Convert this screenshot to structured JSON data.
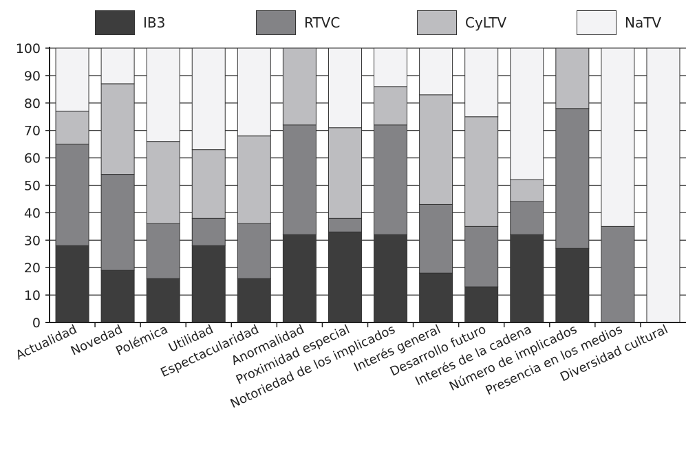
{
  "chart_data": {
    "type": "bar",
    "stacked": true,
    "categories": [
      "Actualidad",
      "Novedad",
      "Polémica",
      "Utilidad",
      "Espectacularidad",
      "Anormalidad",
      "Proximidad especial",
      "Notoriedad de los implicados",
      "Interés general",
      "Desarrollo futuro",
      "Interés de la cadena",
      "Número de implicados",
      "Presencia en los medios",
      "Diversidad cultural"
    ],
    "series": [
      {
        "name": "IB3",
        "color": "#3d3d3d",
        "values": [
          28,
          19,
          16,
          28,
          16,
          32,
          33,
          32,
          18,
          13,
          32,
          27,
          0,
          0
        ]
      },
      {
        "name": "RTVC",
        "color": "#838386",
        "values": [
          37,
          35,
          20,
          10,
          20,
          40,
          5,
          40,
          25,
          22,
          12,
          51,
          35,
          0
        ]
      },
      {
        "name": "CyLTV",
        "color": "#bdbdc0",
        "values": [
          12,
          33,
          30,
          25,
          32,
          28,
          33,
          14,
          40,
          40,
          8,
          22,
          0,
          0
        ]
      },
      {
        "name": "NaTV",
        "color": "#f3f3f5",
        "values": [
          23,
          13,
          34,
          37,
          32,
          0,
          29,
          14,
          17,
          25,
          48,
          0,
          65,
          100
        ]
      }
    ],
    "y_ticks": [
      "0",
      "10",
      "20",
      "30",
      "40",
      "50",
      "60",
      "70",
      "80",
      "90",
      "100"
    ],
    "ylim": [
      0,
      100
    ],
    "grid": true,
    "legend_position": "top"
  }
}
